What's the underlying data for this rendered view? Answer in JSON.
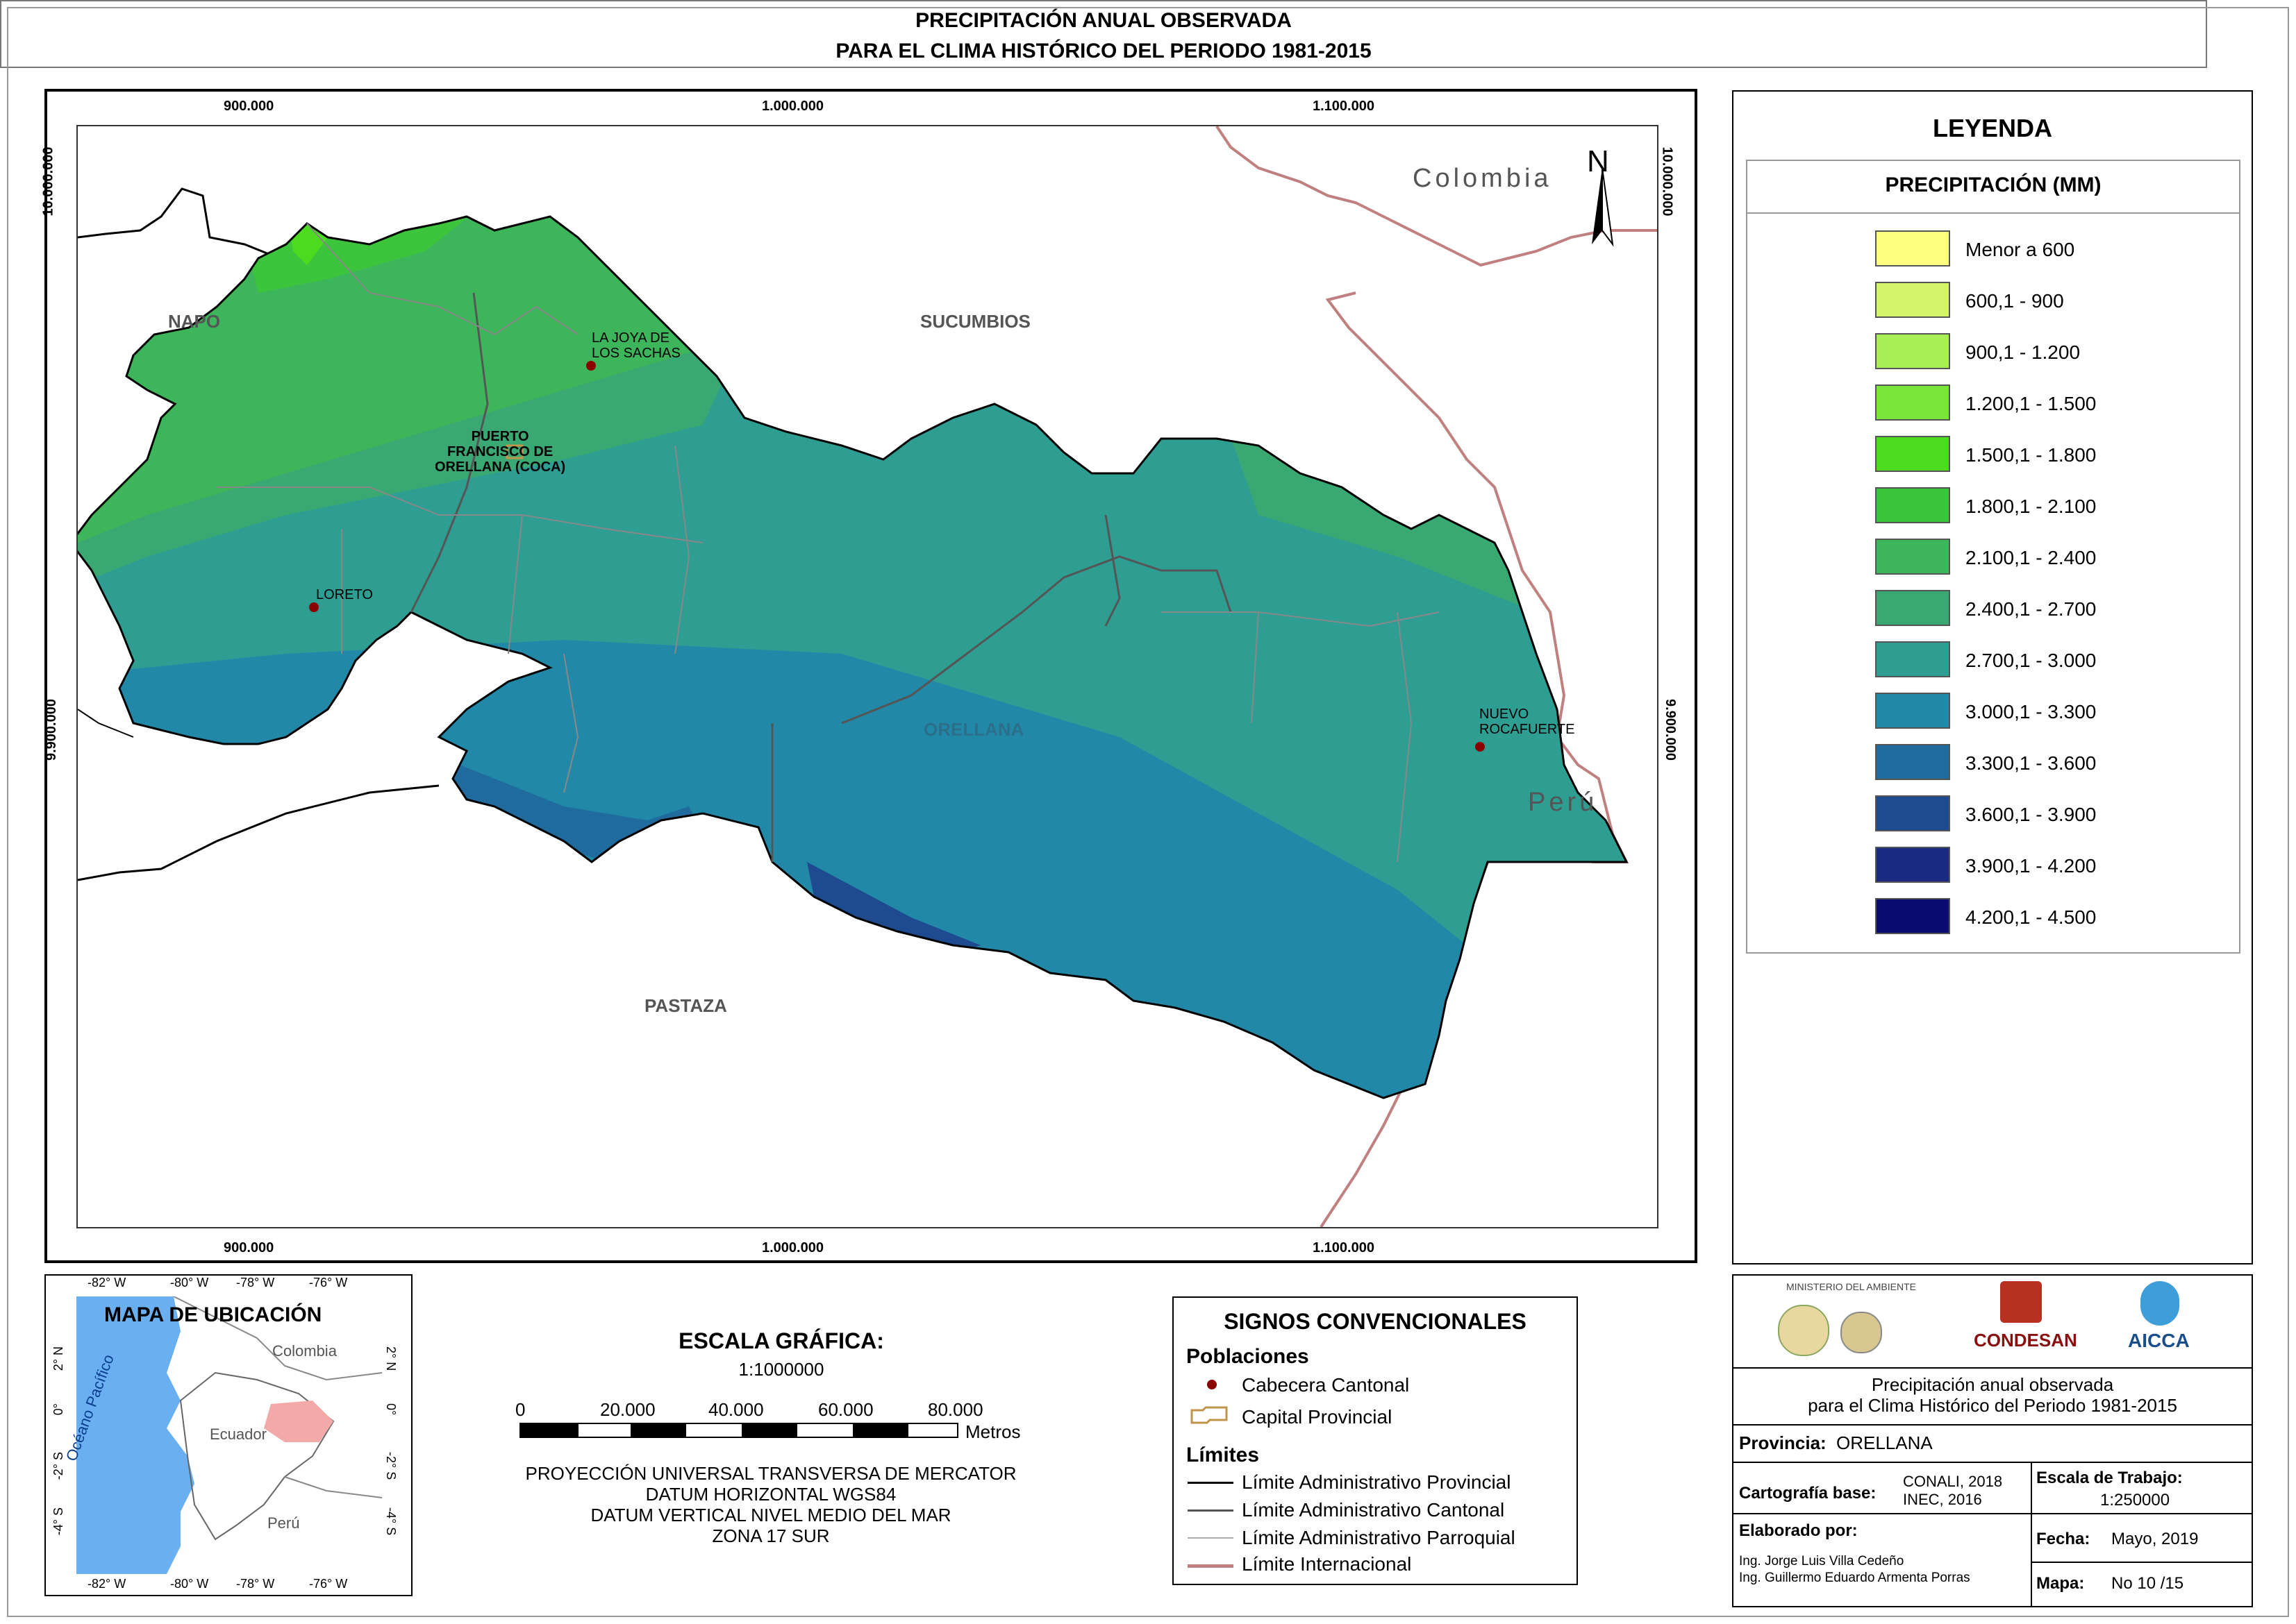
{
  "title": {
    "line1": "PRECIPITACIÓN ANUAL OBSERVADA",
    "line2": "PARA EL CLIMA HISTÓRICO DEL PERIODO 1981-2015"
  },
  "map": {
    "coords_top": [
      "900.000",
      "1.000.000",
      "1.100.000"
    ],
    "coords_bottom": [
      "900.000",
      "1.000.000",
      "1.100.000"
    ],
    "coords_left": [
      "10.000.000",
      "9.900.000"
    ],
    "coords_right": [
      "10.000.000",
      "9.900.000"
    ],
    "regions": {
      "napo": "NAPO",
      "sucumbios": "SUCUMBIOS",
      "orellana": "ORELLANA",
      "pastaza": "PASTAZA"
    },
    "countries": {
      "colombia": "Colombia",
      "peru": "Perú"
    },
    "towns": {
      "joya": "LA JOYA DE\nLOS SACHAS",
      "coca": "PUERTO\nFRANCISCO DE\nORELLANA (COCA)",
      "loreto": "LORETO",
      "nuevo": "NUEVO\nROCAFUERTE"
    },
    "north": "N"
  },
  "legend": {
    "title": "LEYENDA",
    "subtitle": "PRECIPITACIÓN (MM)",
    "items": [
      {
        "label": "Menor a 600",
        "color": "#ffff80"
      },
      {
        "label": "600,1 - 900",
        "color": "#d4f56b"
      },
      {
        "label": "900,1 - 1.200",
        "color": "#a8ef55"
      },
      {
        "label": "1.200,1 - 1.500",
        "color": "#7ae63a"
      },
      {
        "label": "1.500,1 - 1.800",
        "color": "#4ddb1f"
      },
      {
        "label": "1.800,1 - 2.100",
        "color": "#3cc43c"
      },
      {
        "label": "2.100,1 - 2.400",
        "color": "#3db55a"
      },
      {
        "label": "2.400,1 - 2.700",
        "color": "#3aa873"
      },
      {
        "label": "2.700,1 - 3.000",
        "color": "#2e9e93"
      },
      {
        "label": "3.000,1 - 3.300",
        "color": "#2288a8"
      },
      {
        "label": "3.300,1 - 3.600",
        "color": "#206b9e"
      },
      {
        "label": "3.600,1 - 3.900",
        "color": "#1e4a8f"
      },
      {
        "label": "3.900,1 - 4.200",
        "color": "#1a2a82"
      },
      {
        "label": "4.200,1 - 4.500",
        "color": "#0b0b70"
      }
    ]
  },
  "inset": {
    "title": "MAPA DE UBICACIÓN",
    "lon_labels": [
      "-82° W",
      "-80° W",
      "-78° W",
      "-76° W"
    ],
    "lat_labels": [
      "2° N",
      "0°",
      "-2° S",
      "-4° S"
    ],
    "colombia": "Colombia",
    "ecuador": "Ecuador",
    "peru": "Perú",
    "ocean": "Océano Pacífico"
  },
  "scale": {
    "title": "ESCALA GRÁFICA:",
    "ratio": "1:1000000",
    "ticks": [
      "0",
      "20.000",
      "40.000",
      "60.000",
      "80.000"
    ],
    "unit": "Metros",
    "projection": [
      "PROYECCIÓN UNIVERSAL TRANSVERSA DE MERCATOR",
      "DATUM HORIZONTAL WGS84",
      "DATUM VERTICAL NIVEL MEDIO DEL MAR",
      "ZONA 17 SUR"
    ]
  },
  "symbols": {
    "title": "SIGNOS CONVENCIONALES",
    "poblaciones": "Poblaciones",
    "cabecera": "Cabecera Cantonal",
    "capital": "Capital Provincial",
    "limites": "Límites",
    "provincial": "Límite Administrativo Provincial",
    "cantonal": "Límite Administrativo Cantonal",
    "parroquial": "Límite Administrativo Parroquial",
    "internacional": "Límite Internacional"
  },
  "info": {
    "logos": {
      "ministerio": "MINISTERIO DEL AMBIENTE",
      "condesan": "CONDESAN",
      "aicca": "AICCA"
    },
    "description": [
      "Precipitación anual observada",
      "para el Clima Histórico del Periodo 1981-2015"
    ],
    "provincia_label": "Provincia:",
    "provincia_value": "ORELLANA",
    "cartografia_label": "Cartografía base:",
    "cartografia_value": [
      "CONALI, 2018",
      "INEC, 2016"
    ],
    "escala_label": "Escala de Trabajo:",
    "escala_value": "1:250000",
    "elaborado_label": "Elaborado por:",
    "elaborado_value": [
      "Ing. Jorge Luis Villa Cedeño",
      "Ing. Guillermo Eduardo Armenta Porras"
    ],
    "fecha_label": "Fecha:",
    "fecha_value": "Mayo, 2019",
    "mapa_label": "Mapa:",
    "mapa_value": "No 10 /15"
  }
}
